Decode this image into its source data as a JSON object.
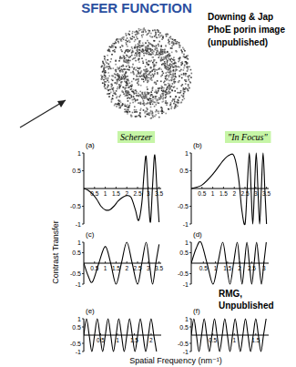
{
  "title": "SFER FUNCTION",
  "image_caption": [
    "Downing & Jap",
    "PhoE porin image",
    "(unpublished)"
  ],
  "credit": [
    "RMG,",
    "Unpublished"
  ],
  "y_label": "Contrast Transfer",
  "x_label": "Spatial Frequency (nm⁻¹)",
  "chart_data": [
    {
      "type": "line",
      "title": "(a)",
      "annotation": "Scherzer",
      "color": "#000000",
      "x": [
        0,
        0.2,
        0.4,
        0.6,
        0.8,
        1.0,
        1.2,
        1.4,
        1.6,
        1.8,
        2.0,
        2.2,
        2.4,
        2.55,
        2.7,
        2.8,
        2.9,
        3.0,
        3.1,
        3.2,
        3.3,
        3.4,
        3.5
      ],
      "values": [
        0,
        -0.05,
        -0.15,
        -0.3,
        -0.5,
        -0.6,
        -0.6,
        -0.5,
        -0.35,
        -0.25,
        -0.2,
        -0.25,
        -0.6,
        -0.9,
        -0.4,
        0.4,
        0.9,
        -0.2,
        -0.95,
        0.1,
        0.95,
        0,
        -0.95
      ],
      "xlim": [
        0,
        3.6
      ],
      "xticks": [
        0.5,
        1,
        1.5,
        2,
        2.5,
        3,
        3.5
      ],
      "ylim": [
        -1,
        1
      ],
      "yticks": [
        -1,
        -0.5,
        0.5,
        1
      ]
    },
    {
      "type": "line",
      "title": "(b)",
      "annotation": "\"In Focus\"",
      "color": "#000000",
      "x": [
        0,
        0.5,
        1.0,
        1.5,
        1.8,
        2.0,
        2.2,
        2.35,
        2.5,
        2.6,
        2.7,
        2.78,
        2.86,
        2.94,
        3.02,
        3.1,
        3.18,
        3.26,
        3.34,
        3.42,
        3.5
      ],
      "values": [
        0,
        0.1,
        0.4,
        0.8,
        0.95,
        0.9,
        0.3,
        -0.6,
        -1,
        0,
        1,
        0,
        -1,
        0,
        1,
        0,
        -1,
        0,
        1,
        0,
        -1
      ],
      "xlim": [
        0,
        3.6
      ],
      "xticks": [
        0.5,
        1,
        1.5,
        2,
        2.5,
        3,
        3.5
      ],
      "ylim": [
        -1,
        1
      ],
      "yticks": [
        -1,
        -0.5,
        0.5,
        1
      ]
    },
    {
      "type": "line",
      "title": "(c)",
      "color": "#000000",
      "x": [
        0,
        0.2,
        0.4,
        0.7,
        1.0,
        1.25,
        1.5,
        1.75,
        2.0,
        2.25,
        2.5,
        2.7,
        2.9,
        3.05,
        3.2,
        3.35,
        3.5
      ],
      "values": [
        0,
        -0.6,
        -0.9,
        0,
        0.8,
        0,
        -1,
        0,
        1,
        0,
        -1,
        0,
        1,
        0,
        -1,
        0,
        0.9
      ],
      "xlim": [
        0,
        3.6
      ],
      "xticks": [
        0.5,
        1,
        1.5,
        2,
        2.5,
        3,
        3.5
      ],
      "ylim": [
        -1,
        1
      ],
      "yticks": [
        -1,
        -0.5,
        0.5,
        1
      ]
    },
    {
      "type": "line",
      "title": "(d)",
      "color": "#000000",
      "x": [
        0,
        0.2,
        0.4,
        0.65,
        0.9,
        1.1,
        1.3,
        1.45,
        1.6,
        1.75,
        1.9,
        2.0,
        2.1,
        2.2,
        2.3,
        2.4,
        2.5,
        2.6,
        2.7,
        2.8,
        2.9,
        3.0,
        3.1
      ],
      "values": [
        0,
        0.7,
        1,
        0,
        -1,
        0,
        1,
        0,
        -1,
        0,
        1,
        0,
        -1,
        0,
        1,
        0,
        -1,
        0,
        1,
        0,
        -1,
        0,
        1
      ],
      "xlim": [
        0,
        3.2
      ],
      "xticks": [
        0.5,
        1,
        1.5,
        2,
        2.5,
        3
      ],
      "ylim": [
        -1,
        1
      ],
      "yticks": [
        -1,
        -0.5,
        0.5,
        1
      ]
    },
    {
      "type": "line",
      "title": "(e)",
      "color": "#000000",
      "x": [
        0,
        0.08,
        0.16,
        0.24,
        0.32,
        0.4,
        0.48,
        0.56,
        0.64,
        0.72,
        0.8,
        0.88,
        0.96,
        1.04,
        1.12,
        1.2,
        1.28,
        1.36,
        1.44,
        1.52,
        1.6,
        1.68,
        1.76,
        1.84,
        1.92,
        2.0,
        2.08,
        2.16
      ],
      "values": [
        0,
        1,
        0,
        -1,
        0,
        1,
        0,
        -1,
        0,
        1,
        0,
        -1,
        0,
        1,
        0,
        -1,
        0,
        1,
        0,
        -1,
        0,
        1,
        0,
        -1,
        0,
        1,
        0,
        -1
      ],
      "xlim": [
        0,
        2.3
      ],
      "xticks": [
        0.5,
        1,
        1.5,
        2
      ],
      "ylim": [
        -1,
        1
      ],
      "yticks": [
        -1,
        -0.5,
        0.5,
        1
      ]
    },
    {
      "type": "line",
      "title": "(f)",
      "color": "#000000",
      "x": [
        0,
        0.06,
        0.12,
        0.18,
        0.24,
        0.3,
        0.36,
        0.42,
        0.48,
        0.54,
        0.6,
        0.66,
        0.72,
        0.78,
        0.84,
        0.9,
        0.96,
        1.02,
        1.08,
        1.14,
        1.2,
        1.26,
        1.32,
        1.38,
        1.44,
        1.5,
        1.56,
        1.62,
        1.68,
        1.74
      ],
      "values": [
        0,
        1,
        0,
        -1,
        0,
        1,
        0,
        -1,
        0,
        1,
        0,
        -1,
        0,
        1,
        0,
        -1,
        0,
        1,
        0,
        -1,
        0,
        1,
        0,
        -1,
        0,
        1,
        0,
        -1,
        0,
        1
      ],
      "xlim": [
        0,
        1.8
      ],
      "xticks": [
        0.5,
        1,
        1.5
      ],
      "ylim": [
        -1,
        1
      ],
      "yticks": [
        -1,
        -0.5,
        0.5,
        1
      ]
    }
  ]
}
